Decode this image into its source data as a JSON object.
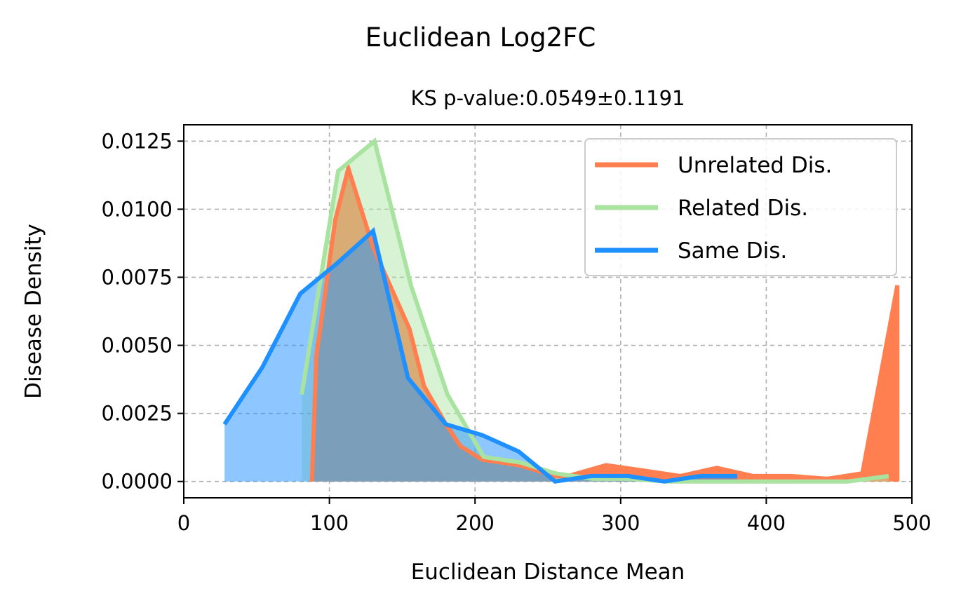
{
  "figure_title": "Euclidean Log2FC",
  "chart_data": {
    "type": "area",
    "title": "KS p-value:0.0549±0.1191",
    "xlabel": "Euclidean Distance Mean",
    "ylabel": "Disease Density",
    "xlim": [
      0,
      500
    ],
    "ylim": [
      -0.0006,
      0.0131
    ],
    "xticks": [
      0,
      100,
      200,
      300,
      400,
      500
    ],
    "xtick_labels": [
      "0",
      "100",
      "200",
      "300",
      "400",
      "500"
    ],
    "yticks": [
      0.0,
      0.0025,
      0.005,
      0.0075,
      0.01,
      0.0125
    ],
    "ytick_labels": [
      "0.0000",
      "0.0025",
      "0.0050",
      "0.0075",
      "0.0100",
      "0.0125"
    ],
    "grid": true,
    "legend_position": "upper right",
    "series": [
      {
        "name": "Unrelated Dis.",
        "color": "#ff7f50",
        "fill_alpha": 1.0,
        "line_width": 6,
        "points": [
          [
            88,
            0.0
          ],
          [
            91,
            0.0046
          ],
          [
            104,
            0.0096
          ],
          [
            113,
            0.0115
          ],
          [
            130,
            0.0086
          ],
          [
            155,
            0.0056
          ],
          [
            165,
            0.0035
          ],
          [
            180,
            0.0021
          ],
          [
            190,
            0.0013
          ],
          [
            205,
            0.0008
          ],
          [
            230,
            0.0006
          ],
          [
            255,
            0.0002
          ],
          [
            264,
            0.0002
          ],
          [
            290,
            0.0006
          ],
          [
            316,
            0.0004
          ],
          [
            341,
            0.0002
          ],
          [
            366,
            0.0005
          ],
          [
            391,
            0.0002
          ],
          [
            417,
            0.0002
          ],
          [
            442,
            0.0001
          ],
          [
            466,
            0.0003
          ],
          [
            490,
            0.0072
          ],
          [
            490,
            0.0
          ]
        ]
      },
      {
        "name": "Related Dis.",
        "color": "#a8e4a0",
        "fill_alpha": 0.45,
        "line_width": 6,
        "points": [
          [
            81,
            0.0032
          ],
          [
            106,
            0.0114
          ],
          [
            131,
            0.0125
          ],
          [
            156,
            0.0072
          ],
          [
            181,
            0.0032
          ],
          [
            206,
            0.0009
          ],
          [
            231,
            0.0007
          ],
          [
            255,
            0.0003
          ],
          [
            281,
            0.0001
          ],
          [
            306,
            0.0001
          ],
          [
            331,
            0.0
          ],
          [
            356,
            0.0
          ],
          [
            381,
            0.0
          ],
          [
            406,
            0.0
          ],
          [
            431,
            0.0
          ],
          [
            456,
            0.0
          ],
          [
            484,
            0.0002
          ]
        ]
      },
      {
        "name": "Same Dis.",
        "color": "#1e90ff",
        "fill_alpha": 0.5,
        "line_width": 6,
        "points": [
          [
            28,
            0.0021
          ],
          [
            54,
            0.0042
          ],
          [
            80,
            0.0069
          ],
          [
            105,
            0.008
          ],
          [
            130,
            0.0092
          ],
          [
            154,
            0.0038
          ],
          [
            180,
            0.0021
          ],
          [
            205,
            0.0017
          ],
          [
            230,
            0.0011
          ],
          [
            255,
            0.0
          ],
          [
            280,
            0.0002
          ],
          [
            305,
            0.0002
          ],
          [
            330,
            0.0
          ],
          [
            355,
            0.0002
          ],
          [
            380,
            0.0002
          ]
        ]
      }
    ]
  }
}
